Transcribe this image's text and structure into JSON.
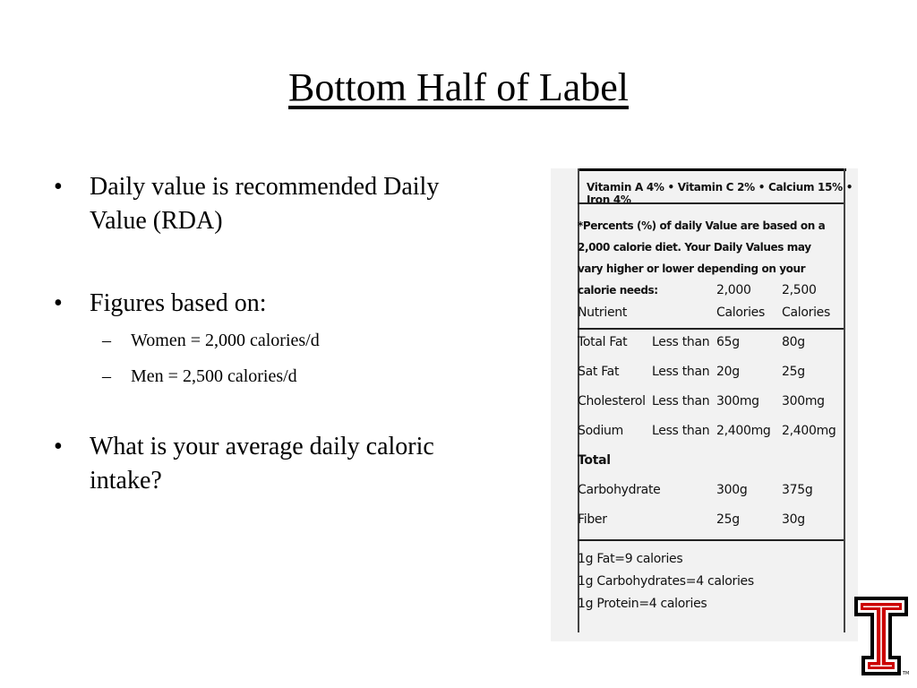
{
  "slide": {
    "title": "Bottom Half of Label",
    "bullets": [
      {
        "text": "Daily value is recommended Daily Value (RDA)"
      },
      {
        "text": "Figures based on:",
        "sub": [
          "Women = 2,000 calories/d",
          "Men = 2,500 calories/d"
        ]
      },
      {
        "text": "What is your average daily caloric intake?"
      }
    ],
    "bullet_glyph": "•",
    "sub_glyph": "–"
  },
  "label": {
    "vitamins": "Vitamin A 4% • Vitamin C 2% • Calcium 15% • Iron 4%",
    "footnote": "*Percents (%) of daily Value are based on a 2,000 calorie diet. Your Daily Values may vary higher or lower depending on your calorie needs:",
    "headers": {
      "nutrient": "Nutrient",
      "col1a": "2,000",
      "col1b": "Calories",
      "col2a": "2,500",
      "col2b": "Calories"
    },
    "rows": [
      {
        "nutrient": "Total Fat",
        "qualifier": "Less than",
        "v2000": "65g",
        "v2500": "80g"
      },
      {
        "nutrient": "Sat Fat",
        "qualifier": "Less than",
        "v2000": "20g",
        "v2500": "25g"
      },
      {
        "nutrient": "Cholesterol",
        "qualifier": "Less than",
        "v2000": "300mg",
        "v2500": "300mg"
      },
      {
        "nutrient": "Sodium",
        "qualifier": "Less than",
        "v2000": "2,400mg",
        "v2500": "2,400mg"
      },
      {
        "nutrient": "Total",
        "qualifier": "",
        "v2000": "",
        "v2500": ""
      },
      {
        "nutrient": "Carbohydrate",
        "qualifier": "",
        "v2000": "300g",
        "v2500": "375g"
      },
      {
        "nutrient": "Fiber",
        "qualifier": "",
        "v2000": "25g",
        "v2500": "30g"
      }
    ],
    "facts": [
      "1g Fat=9 calories",
      "1g Carbohydrates=4 calories",
      "1g Protein=4 calories"
    ]
  },
  "logo": {
    "icon": "double-t-logo-icon",
    "mark": "TM",
    "colors": {
      "red": "#cc0000",
      "black": "#000000"
    }
  }
}
